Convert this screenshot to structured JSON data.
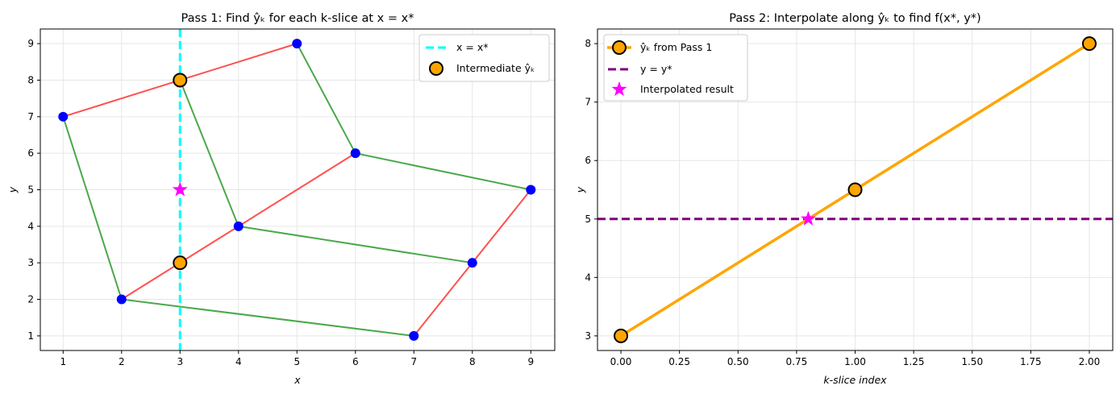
{
  "chart_data": [
    {
      "type": "line",
      "title": "Pass 1: Find ŷₖ for each k-slice at x = x*",
      "xlabel": "x",
      "ylabel": "y",
      "xlim": [
        0.61,
        9.41
      ],
      "ylim": [
        0.6,
        9.4
      ],
      "xticks": [
        1,
        2,
        3,
        4,
        5,
        6,
        7,
        8,
        9
      ],
      "yticks": [
        1,
        2,
        3,
        4,
        5,
        6,
        7,
        8,
        9
      ],
      "grid": true,
      "legend_position": "top-right",
      "grid_points": [
        [
          [
            1,
            7
          ],
          [
            3,
            8
          ],
          [
            5,
            9
          ]
        ],
        [
          [
            2,
            2
          ],
          [
            4,
            4
          ],
          [
            6,
            6
          ]
        ],
        [
          [
            7,
            1
          ],
          [
            8,
            3
          ],
          [
            9,
            5
          ]
        ]
      ],
      "row_color": "#ff5050",
      "column_color": "#4aa84a",
      "point_color": "#0000ff",
      "vline": {
        "x": 3,
        "label": "x = x*",
        "color": "#00ffff"
      },
      "intermediate": {
        "label": "Intermediate ŷₖ",
        "points": [
          [
            3,
            8
          ],
          [
            3,
            3
          ]
        ],
        "color": "#ffa500"
      },
      "star": {
        "x": 3,
        "y": 5,
        "color": "#ff00ff"
      }
    },
    {
      "type": "line",
      "title": "Pass 2: Interpolate along ŷₖ to find f(x*, y*)",
      "xlabel": "k-slice index",
      "ylabel": "y",
      "xlim": [
        -0.1,
        2.1
      ],
      "ylim": [
        2.75,
        8.25
      ],
      "xticks": [
        "0.00",
        "0.25",
        "0.50",
        "0.75",
        "1.00",
        "1.25",
        "1.50",
        "1.75",
        "2.00"
      ],
      "yticks": [
        3,
        4,
        5,
        6,
        7,
        8
      ],
      "grid": true,
      "legend_position": "top-left",
      "series": [
        {
          "name": "ŷₖ from Pass 1",
          "x": [
            0,
            1,
            2
          ],
          "y": [
            3,
            5.5,
            8
          ],
          "color": "#ffa500"
        }
      ],
      "hline": {
        "y": 5,
        "label": "y = y*",
        "color": "#800080"
      },
      "star": {
        "x": 0.8,
        "y": 5,
        "label": "Interpolated result",
        "color": "#ff00ff"
      }
    }
  ]
}
